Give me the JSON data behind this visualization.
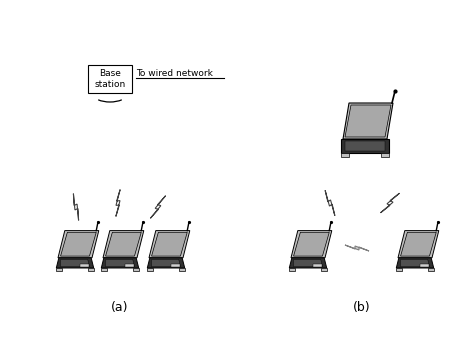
{
  "background_color": "#ffffff",
  "label_a": "(a)",
  "label_b": "(b)",
  "base_station_label": "Base\nstation",
  "wired_network_label": "To wired network",
  "screen_color": "#a8a8a8",
  "body_color": "#c0c0c0",
  "dark_color": "#303030",
  "kbd_color": "#505050",
  "light_gray": "#d0d0d0",
  "white": "#ffffff",
  "line_color": "#000000",
  "text_color": "#000000",
  "bolt_fill": "#c0c0c0",
  "bolt_edge": "#606060"
}
